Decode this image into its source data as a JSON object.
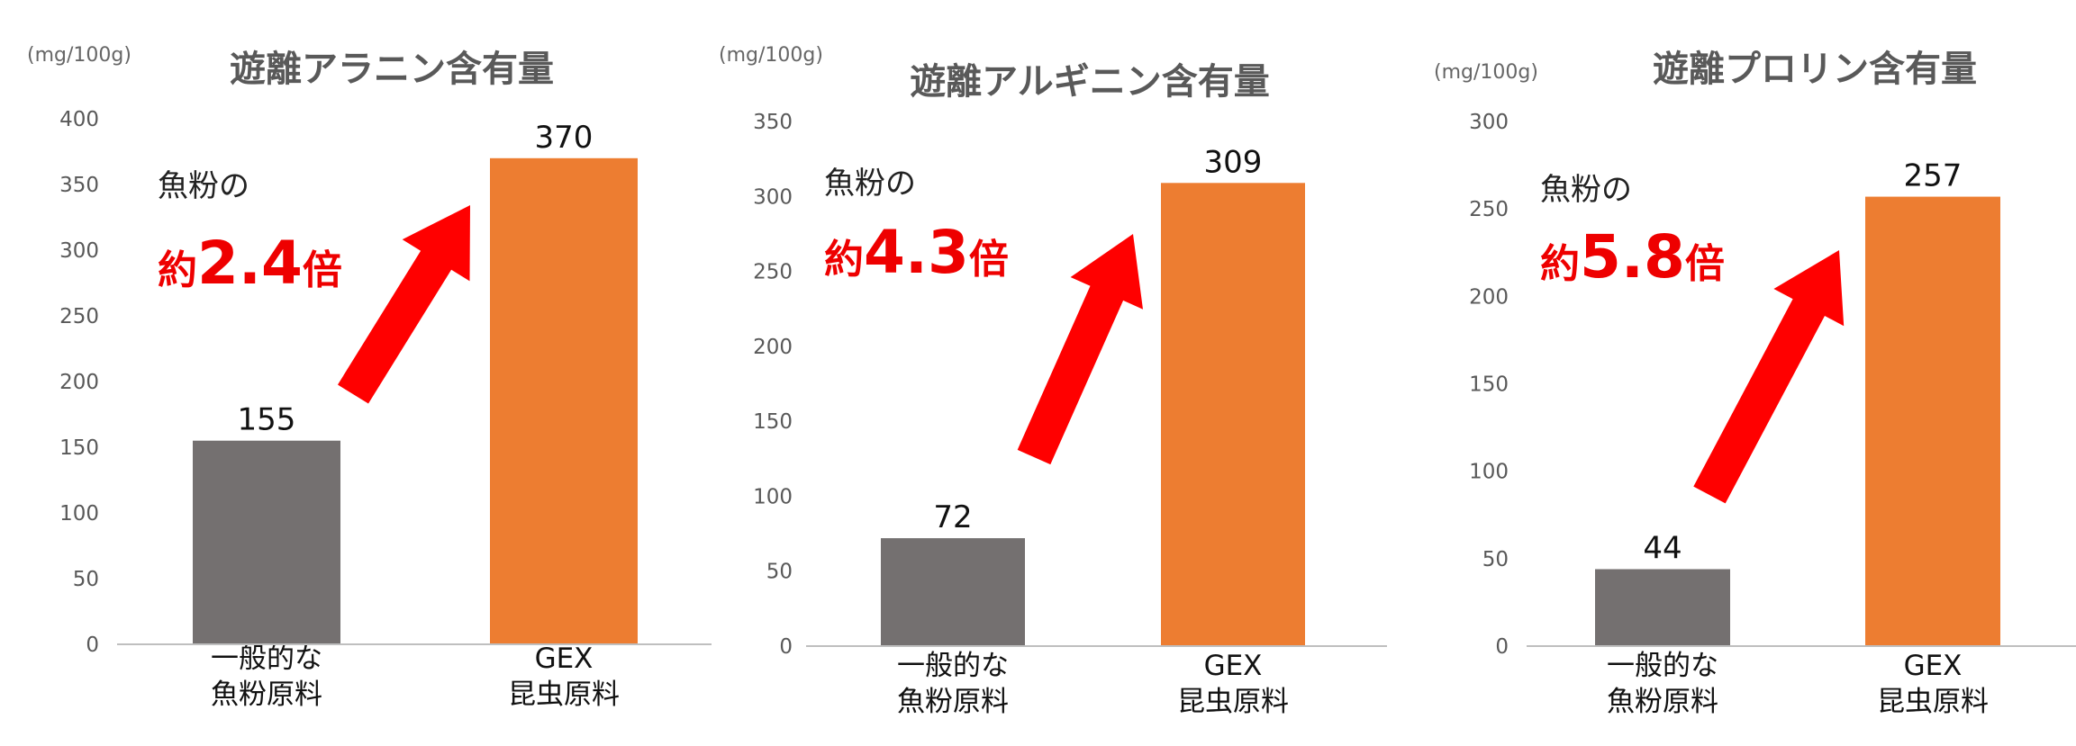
{
  "colors": {
    "fishmeal": "#747070",
    "gex": "#ed7d31",
    "arrow": "#ff0000",
    "axis": "#bfbfbf",
    "accent_text": "#ee0000"
  },
  "chart_data": [
    {
      "type": "bar",
      "title": "遊離アラニン含有量",
      "unit": "(mg/100g)",
      "categories": [
        [
          "一般的な",
          "魚粉原料"
        ],
        [
          "GEX",
          "昆虫原料"
        ]
      ],
      "values": [
        155,
        370
      ],
      "value_labels": [
        "155",
        "370"
      ],
      "ylim": [
        0,
        400
      ],
      "yticks": [
        0,
        50,
        100,
        150,
        200,
        250,
        300,
        350,
        400
      ],
      "grid": false,
      "legend": "none",
      "callout": {
        "line1": "魚粉の",
        "prefix": "約",
        "number": "2.4",
        "suffix": "倍"
      }
    },
    {
      "type": "bar",
      "title": "遊離アルギニン含有量",
      "unit": "(mg/100g)",
      "categories": [
        [
          "一般的な",
          "魚粉原料"
        ],
        [
          "GEX",
          "昆虫原料"
        ]
      ],
      "values": [
        72,
        309
      ],
      "value_labels": [
        "72",
        "309"
      ],
      "ylim": [
        0,
        350
      ],
      "yticks": [
        0,
        50,
        100,
        150,
        200,
        250,
        300,
        350
      ],
      "grid": false,
      "legend": "none",
      "callout": {
        "line1": "魚粉の",
        "prefix": "約",
        "number": "4.3",
        "suffix": "倍"
      }
    },
    {
      "type": "bar",
      "title": "遊離プロリン含有量",
      "unit": "(mg/100g)",
      "categories": [
        [
          "一般的な",
          "魚粉原料"
        ],
        [
          "GEX",
          "昆虫原料"
        ]
      ],
      "values": [
        44,
        257
      ],
      "value_labels": [
        "44",
        "257"
      ],
      "ylim": [
        0,
        300
      ],
      "yticks": [
        0,
        50,
        100,
        150,
        200,
        250,
        300
      ],
      "grid": false,
      "legend": "none",
      "callout": {
        "line1": "魚粉の",
        "prefix": "約",
        "number": "5.8",
        "suffix": "倍"
      }
    }
  ]
}
